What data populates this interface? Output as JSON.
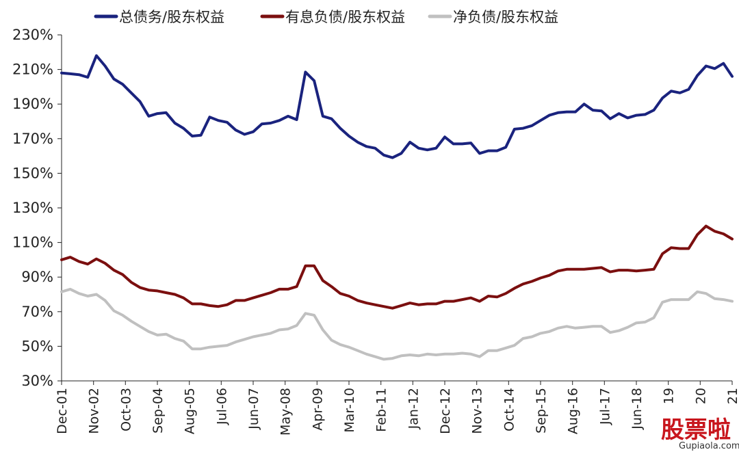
{
  "chart_data": {
    "type": "line",
    "title": "",
    "xlabel": "",
    "ylabel": "",
    "ylim": [
      30,
      230
    ],
    "yticks": [
      30,
      50,
      70,
      90,
      110,
      130,
      150,
      170,
      190,
      210,
      230
    ],
    "ytick_labels": [
      "30%",
      "50%",
      "70%",
      "90%",
      "110%",
      "130%",
      "150%",
      "170%",
      "190%",
      "210%",
      "230%"
    ],
    "xtick_labels": [
      "Dec-01",
      "Nov-02",
      "Oct-03",
      "Sep-04",
      "Aug-05",
      "Jul-06",
      "Jun-07",
      "May-08",
      "Apr-09",
      "Mar-10",
      "Feb-11",
      "Jan-12",
      "Dec-12",
      "Nov-13",
      "Oct-14",
      "Sep-15",
      "Aug-16",
      "Jul-17",
      "Jun-18",
      "19",
      "20",
      "21"
    ],
    "xtick_positions": [
      0,
      3.67,
      7.33,
      11,
      14.67,
      18.33,
      22,
      25.67,
      29.33,
      33,
      36.67,
      40.33,
      44,
      47.67,
      51.33,
      55,
      58.67,
      62.33,
      66,
      69.67,
      73.33,
      77
    ],
    "grid": false,
    "legend_position": "top",
    "series": [
      {
        "name": "总债务/股东权益",
        "color": "#1a237e",
        "values": [
          208,
          207.5,
          207,
          205.5,
          218,
          212,
          204.5,
          201.5,
          196.5,
          191.5,
          183,
          184.5,
          185,
          179,
          176,
          171.5,
          172,
          182.5,
          180.5,
          179.5,
          175,
          172.5,
          174,
          178.5,
          179,
          180.5,
          183,
          181,
          208.5,
          203.5,
          183,
          181.5,
          176,
          171.5,
          168,
          165.5,
          164.5,
          160.5,
          159,
          161.5,
          168,
          164.5,
          163.5,
          164.5,
          171,
          167,
          167,
          167.5,
          161.5,
          163,
          163,
          165,
          175.5,
          176,
          177.5,
          180.5,
          183.5,
          185,
          185.5,
          185.5,
          190,
          186.5,
          186,
          181.5,
          184.5,
          182,
          183.5,
          184,
          186.5,
          193.5,
          197.5,
          196.5,
          198.5,
          206.5,
          212,
          210.5,
          213.5,
          206
        ]
      },
      {
        "name": "有息负债/股东权益",
        "color": "#7b0f0f",
        "values": [
          100,
          101.5,
          99,
          97.5,
          100.5,
          98,
          94,
          91.5,
          87,
          84,
          82.5,
          82,
          81,
          80,
          78,
          74.5,
          74.5,
          73.5,
          73,
          74,
          76.5,
          76.5,
          78,
          79.5,
          81,
          83,
          83,
          84.5,
          96.5,
          96.5,
          88,
          84.5,
          80.5,
          79,
          76.5,
          75,
          74,
          73,
          72,
          73.5,
          75,
          74,
          74.5,
          74.5,
          76,
          76,
          77,
          78,
          76,
          79,
          78.5,
          80.5,
          83.5,
          86,
          87.5,
          89.5,
          91,
          93.5,
          94.5,
          94.5,
          94.5,
          95,
          95.5,
          93,
          94,
          94,
          93.5,
          94,
          94.5,
          103.5,
          107,
          106.5,
          106.5,
          114.5,
          119.5,
          116.5,
          115,
          112
        ]
      },
      {
        "name": "净负债/股东权益",
        "color": "#c0c0c0",
        "values": [
          81.5,
          83,
          80.5,
          79,
          80,
          76.5,
          70.5,
          68,
          64.5,
          61.5,
          58.5,
          56.5,
          57,
          54.5,
          53,
          48.5,
          48.5,
          49.5,
          50,
          50.5,
          52.5,
          54,
          55.5,
          56.5,
          57.5,
          59.5,
          60,
          62,
          69,
          68,
          59.5,
          53.5,
          51,
          49.5,
          47.5,
          45.5,
          44,
          42.5,
          43,
          44.5,
          45,
          44.5,
          45.5,
          45,
          45.5,
          45.5,
          46,
          45.5,
          44,
          47.5,
          47.5,
          49,
          50.5,
          54.5,
          55.5,
          57.5,
          58.5,
          60.5,
          61.5,
          60.5,
          61,
          61.5,
          61.5,
          58,
          59,
          61,
          63.5,
          64,
          66.5,
          75.5,
          77,
          77,
          77,
          81.5,
          80.5,
          77.5,
          77,
          76
        ]
      }
    ]
  },
  "watermark": {
    "logo_text": "股票啦",
    "site_text": "Gupiaola.com"
  }
}
